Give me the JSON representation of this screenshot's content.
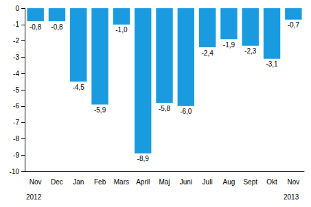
{
  "chart_data": {
    "type": "bar",
    "categories": [
      "Nov",
      "Dec",
      "Jan",
      "Feb",
      "Mars",
      "April",
      "Maj",
      "Juni",
      "Juli",
      "Aug",
      "Sept",
      "Okt",
      "Nov"
    ],
    "values": [
      -0.8,
      -0.8,
      -4.5,
      -5.9,
      -1.0,
      -8.9,
      -5.8,
      -6.0,
      -2.4,
      -1.9,
      -2.3,
      -3.1,
      -0.7
    ],
    "value_labels": [
      "-0,8",
      "-0,8",
      "-4,5",
      "-5,9",
      "-1,0",
      "-8,9",
      "-5,8",
      "-6,0",
      "-2,4",
      "-1,9",
      "-2,3",
      "-3,1",
      "-0,7"
    ],
    "data_labels": true,
    "color": "#1a9be0",
    "ylim": [
      -10,
      0
    ],
    "yticks": [
      -10,
      -9,
      -8,
      -7,
      -6,
      -5,
      -4,
      -3,
      -2,
      -1,
      0
    ],
    "grid": false,
    "annotations": [
      {
        "text": "2012",
        "category": 0
      },
      {
        "text": "2013",
        "category": 12
      }
    ]
  }
}
